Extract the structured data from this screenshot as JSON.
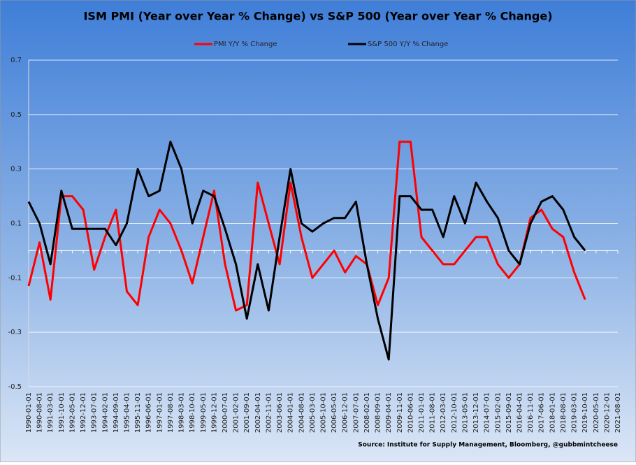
{
  "chart_data": {
    "type": "line",
    "title": "ISM PMI (Year over Year % Change) vs S&P 500 (Year over Year % Change)",
    "source": "Source: Institute for Supply Management, Bloomberg, @gubbmintcheese",
    "categories": [
      "1990-01-01",
      "1990-08-01",
      "1991-03-01",
      "1991-10-01",
      "1992-05-01",
      "1992-12-01",
      "1993-07-01",
      "1994-02-01",
      "1994-09-01",
      "1995-04-01",
      "1995-11-01",
      "1996-06-01",
      "1997-01-01",
      "1997-08-01",
      "1998-03-01",
      "1998-10-01",
      "1999-05-01",
      "1999-12-01",
      "2000-07-01",
      "2001-02-01",
      "2001-09-01",
      "2002-04-01",
      "2002-11-01",
      "2003-06-01",
      "2004-01-01",
      "2004-08-01",
      "2005-03-01",
      "2005-10-01",
      "2006-05-01",
      "2006-12-01",
      "2007-07-01",
      "2008-02-01",
      "2008-09-01",
      "2009-04-01",
      "2009-11-01",
      "2010-06-01",
      "2011-01-01",
      "2011-08-01",
      "2012-03-01",
      "2012-10-01",
      "2013-05-01",
      "2013-12-01",
      "2014-07-01",
      "2015-02-01",
      "2015-09-01",
      "2016-04-01",
      "2016-11-01",
      "2017-06-01",
      "2018-01-01",
      "2018-08-01",
      "2019-03-01",
      "2019-10-01",
      "2020-05-01",
      "2020-12-01",
      "2021-08-01"
    ],
    "series": [
      {
        "name": "PMI Y/Y % Change",
        "color": "#ff0000",
        "values": [
          -0.13,
          0.03,
          -0.18,
          0.2,
          0.2,
          0.15,
          -0.07,
          0.05,
          0.15,
          -0.15,
          -0.2,
          0.05,
          0.15,
          0.1,
          0.0,
          -0.12,
          0.05,
          0.22,
          -0.05,
          -0.22,
          -0.2,
          0.25,
          0.1,
          -0.05,
          0.25,
          0.05,
          -0.1,
          -0.05,
          0.0,
          -0.08,
          -0.02,
          -0.05,
          -0.2,
          -0.1,
          0.4,
          0.4,
          0.05,
          0.0,
          -0.05,
          -0.05,
          0.0,
          0.05,
          0.05,
          -0.05,
          -0.1,
          -0.05,
          0.12,
          0.15,
          0.08,
          0.05,
          -0.08,
          -0.18,
          null,
          null,
          null
        ]
      },
      {
        "name": "S&P 500 Y/Y % Change",
        "color": "#000000",
        "values": [
          0.18,
          0.1,
          -0.05,
          0.22,
          0.08,
          0.08,
          0.08,
          0.08,
          0.02,
          0.1,
          0.3,
          0.2,
          0.22,
          0.4,
          0.3,
          0.1,
          0.22,
          0.2,
          0.08,
          -0.05,
          -0.25,
          -0.05,
          -0.22,
          0.05,
          0.3,
          0.1,
          0.07,
          0.1,
          0.12,
          0.12,
          0.18,
          -0.05,
          -0.25,
          -0.4,
          0.2,
          0.2,
          0.15,
          0.15,
          0.05,
          0.2,
          0.1,
          0.25,
          0.18,
          0.12,
          0.0,
          -0.05,
          0.1,
          0.18,
          0.2,
          0.15,
          0.05,
          0.0,
          null,
          null,
          null
        ]
      }
    ],
    "ylim": [
      -0.5,
      0.7
    ],
    "yticks": [
      -0.5,
      -0.3,
      -0.1,
      0.1,
      0.3,
      0.5,
      0.7
    ],
    "grid": true
  }
}
